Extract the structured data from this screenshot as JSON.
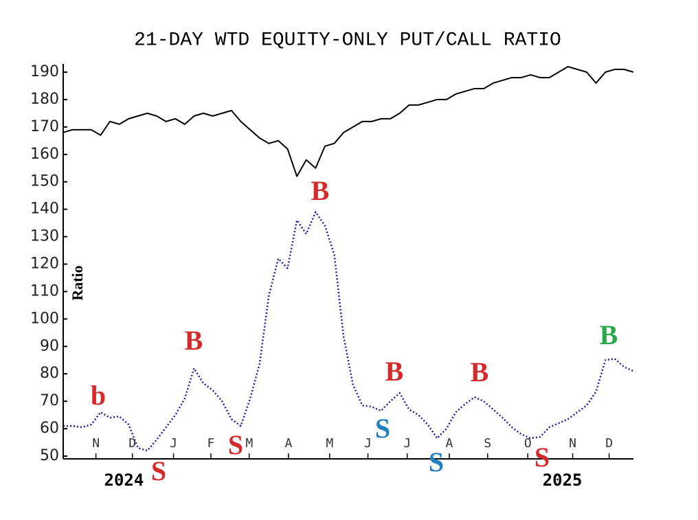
{
  "chart_data": {
    "type": "line",
    "title": "21-DAY WTD EQUITY-ONLY PUT/CALL RATIO",
    "y_label": "Ratio",
    "x": [
      0,
      1,
      2,
      3,
      4,
      5,
      6,
      7,
      8,
      9,
      10,
      11,
      12,
      13,
      14,
      15,
      16,
      17,
      18,
      19,
      20,
      21,
      22,
      23,
      24,
      25,
      26,
      27,
      28,
      29,
      30,
      31,
      32,
      33,
      34,
      35,
      36,
      37,
      38,
      39,
      40,
      41,
      42,
      43,
      44,
      45,
      46,
      47,
      48,
      49,
      50,
      51,
      52,
      53,
      54,
      55,
      56,
      57,
      58,
      59,
      60,
      61
    ],
    "xlim": [
      0,
      61
    ],
    "xticks": [
      {
        "value": 3.5,
        "label": "N"
      },
      {
        "value": 7.4,
        "label": "D"
      },
      {
        "value": 11.8,
        "label": "J"
      },
      {
        "value": 15.8,
        "label": "F"
      },
      {
        "value": 19.9,
        "label": "M"
      },
      {
        "value": 24.1,
        "label": "A"
      },
      {
        "value": 28.5,
        "label": "M"
      },
      {
        "value": 32.6,
        "label": "J"
      },
      {
        "value": 36.8,
        "label": "J"
      },
      {
        "value": 41.3,
        "label": "A"
      },
      {
        "value": 45.4,
        "label": "S"
      },
      {
        "value": 49.7,
        "label": "O"
      },
      {
        "value": 54.5,
        "label": "N"
      },
      {
        "value": 58.4,
        "label": "D"
      }
    ],
    "year_labels": [
      {
        "value": 6.5,
        "label": "2024"
      },
      {
        "value": 53.4,
        "label": "2025"
      }
    ],
    "ylim": [
      49,
      193
    ],
    "yticks": [
      50,
      60,
      70,
      80,
      90,
      100,
      110,
      120,
      130,
      140,
      150,
      160,
      170,
      180,
      190
    ],
    "series": [
      {
        "color": "#000000",
        "values": [
          168,
          169,
          169,
          169,
          167,
          172,
          171,
          173,
          174,
          175,
          174,
          172,
          173,
          171,
          174,
          175,
          174,
          175,
          176,
          172,
          169,
          166,
          164,
          165,
          162,
          152,
          158,
          155,
          163,
          164,
          168,
          170,
          172,
          172,
          173,
          173,
          175,
          178,
          178,
          179,
          180,
          180,
          182,
          183,
          184,
          184,
          186,
          187,
          188,
          188,
          189,
          188,
          188,
          190,
          192,
          191,
          190,
          186,
          190,
          191,
          191,
          190
        ]
      },
      {
        "color": "#1a1aa0",
        "values": [
          61,
          61,
          60.5,
          61.5,
          66,
          64,
          64.5,
          61.5,
          53,
          52,
          56,
          60.5,
          65,
          71,
          82,
          76.5,
          74,
          70,
          63.5,
          61,
          71,
          83.5,
          108.5,
          122,
          118.5,
          136,
          131,
          139,
          134,
          123.5,
          93.5,
          76,
          68.5,
          68,
          66.5,
          70,
          73,
          67,
          65,
          61.5,
          56.5,
          60,
          66,
          69,
          71.5,
          70,
          67,
          64,
          60.5,
          58,
          56.5,
          57,
          60.5,
          62,
          63.5,
          66,
          68.5,
          73.5,
          85,
          85.5,
          82.5,
          81
        ]
      }
    ],
    "annotations": [
      {
        "text": "b",
        "color": "#d42a2a"
      },
      {
        "text": "S",
        "color": "#d42a2a"
      },
      {
        "text": "B",
        "color": "#d42a2a"
      },
      {
        "text": "S",
        "color": "#d42a2a"
      },
      {
        "text": "B",
        "color": "#d42a2a"
      },
      {
        "text": "S",
        "color": "#1f7fbf"
      },
      {
        "text": "B",
        "color": "#d42a2a"
      },
      {
        "text": "S",
        "color": "#1f7fbf"
      },
      {
        "text": "B",
        "color": "#d42a2a"
      },
      {
        "text": "S",
        "color": "#d42a2a"
      },
      {
        "text": "B",
        "color": "#2aa84a"
      }
    ]
  }
}
